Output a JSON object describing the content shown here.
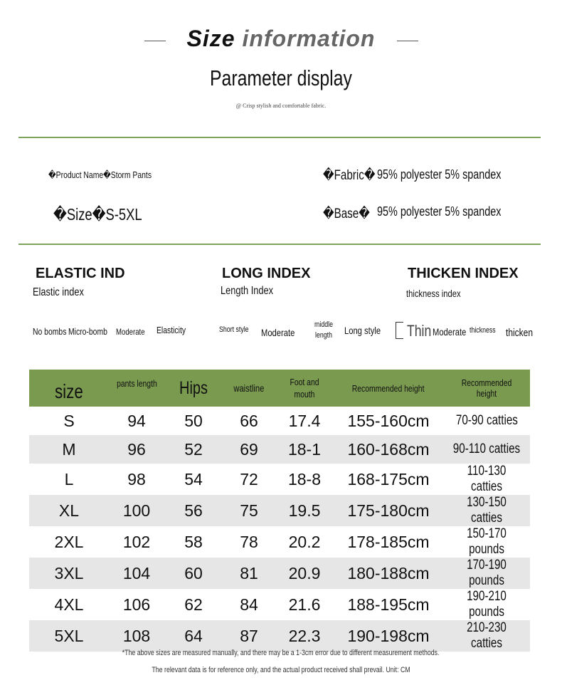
{
  "header": {
    "title_part1": "Size",
    "title_part2": "information",
    "subtitle": "Parameter display",
    "tagline": "@ Crisp stylish and comfortable fabric."
  },
  "product": {
    "name": "�Product Name�Storm Pants",
    "size": "�Size�S-5XL",
    "fabric_label": "�Fabric�",
    "fabric_value": "95% polyester 5% spandex",
    "base_label": "�Base�",
    "base_value": "95% polyester 5% spandex"
  },
  "indexes": {
    "elastic": {
      "title": "ELASTIC IND",
      "subtitle": "Elastic index",
      "options": [
        "No bombs",
        "Micro-bomb",
        "Moderate",
        "Elasticity"
      ]
    },
    "length": {
      "title": "LONG INDEX",
      "subtitle": "Length Index",
      "options": [
        "Short style",
        "Moderate",
        "middle length",
        "Long style"
      ]
    },
    "thicken": {
      "title": "THICKEN INDEX",
      "subtitle": "thickness index",
      "options": [
        "Thin",
        "Moderate",
        "thickness",
        "thicken"
      ]
    }
  },
  "table": {
    "headers": [
      "size",
      "pants length",
      "Hips",
      "waistline",
      "Foot and mouth",
      "Recommended height",
      "Recommended height"
    ],
    "rows": [
      [
        "S",
        "94",
        "50",
        "66",
        "17.4",
        "155-160cm",
        "70-90 catties"
      ],
      [
        "M",
        "96",
        "52",
        "69",
        "18-1",
        "160-168cm",
        "90-110 catties"
      ],
      [
        "L",
        "98",
        "54",
        "72",
        "18-8",
        "168-175cm",
        "110-130 catties"
      ],
      [
        "XL",
        "100",
        "56",
        "75",
        "19.5",
        "175-180cm",
        "130-150 catties"
      ],
      [
        "2XL",
        "102",
        "58",
        "78",
        "20.2",
        "178-185cm",
        "150-170 pounds"
      ],
      [
        "3XL",
        "104",
        "60",
        "81",
        "20.9",
        "180-188cm",
        "170-190 pounds"
      ],
      [
        "4XL",
        "106",
        "62",
        "84",
        "21.6",
        "188-195cm",
        "190-210 pounds"
      ],
      [
        "5XL",
        "108",
        "64",
        "87",
        "22.3",
        "190-198cm",
        "210-230 catties"
      ]
    ],
    "header_color": "#7a9a50"
  },
  "footer": {
    "note1": "*The above sizes are measured manually, and there may be a 1-3cm error due to different measurement methods.",
    "note2": "The relevant data is for reference only, and the actual product received shall prevail. Unit: CM"
  }
}
